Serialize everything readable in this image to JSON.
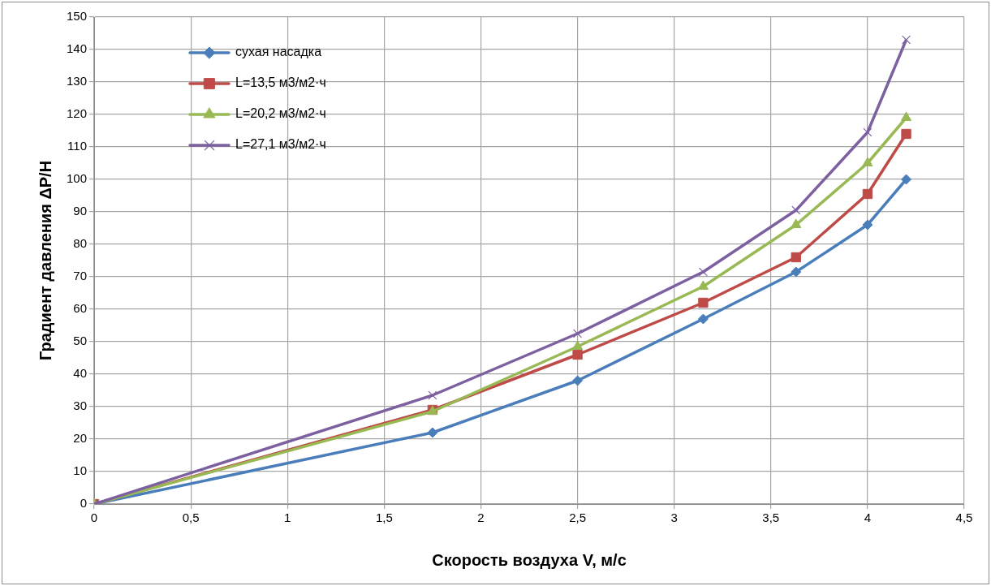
{
  "chart_data": {
    "type": "line",
    "xlabel": "Скорость воздуха V, м/с",
    "ylabel": "Градиент давления ΔP/H",
    "x": [
      0,
      1.75,
      2.5,
      3.15,
      3.63,
      4.0,
      4.2
    ],
    "series": [
      {
        "name": "сухая насадка",
        "color": "#4a7ebb",
        "marker": "diamond",
        "values": [
          0,
          22,
          38,
          57,
          71.5,
          86,
          100
        ]
      },
      {
        "name": "L=13,5 м3/м2·ч",
        "color": "#be4b48",
        "marker": "square",
        "values": [
          0,
          29,
          46,
          62,
          76,
          95.5,
          114
        ]
      },
      {
        "name": "L=20,2 м3/м2·ч",
        "color": "#98b954",
        "marker": "triangle",
        "values": [
          0,
          28.5,
          48.5,
          67,
          86,
          105,
          119
        ]
      },
      {
        "name": "L=27,1 м3/м2·ч",
        "color": "#7d60a0",
        "marker": "cross",
        "values": [
          0,
          33.5,
          52.5,
          71.5,
          90.5,
          114.5,
          143
        ]
      }
    ],
    "xlim": [
      0,
      4.5
    ],
    "xticks": [
      0,
      {
        "value": 0.5,
        "label": "0,5"
      },
      1,
      {
        "value": 1.5,
        "label": "1,5"
      },
      2,
      {
        "value": 2.5,
        "label": "2,5"
      },
      3,
      {
        "value": 3.5,
        "label": "3,5"
      },
      4,
      {
        "value": 4.5,
        "label": "4,5"
      }
    ],
    "ylim": [
      0,
      150
    ],
    "yticks": [
      0,
      10,
      20,
      30,
      40,
      50,
      60,
      70,
      80,
      90,
      100,
      110,
      120,
      130,
      140,
      150
    ],
    "grid": true,
    "legend": "top left"
  }
}
